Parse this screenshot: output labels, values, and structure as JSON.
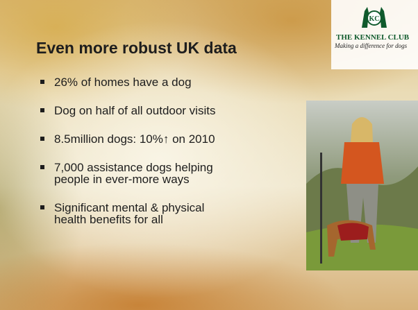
{
  "title": "Even more robust UK data",
  "bullets": [
    "26% of homes have a dog",
    "Dog on half of all outdoor visits",
    "8.5million dogs: 10%↑ on 2010",
    "7,000 assistance dogs helping people in ever-more ways",
    "Significant mental & physical health benefits for all"
  ],
  "logo": {
    "emblem": "KC",
    "name": "THE KENNEL CLUB",
    "tagline": "Making a difference for dogs"
  }
}
